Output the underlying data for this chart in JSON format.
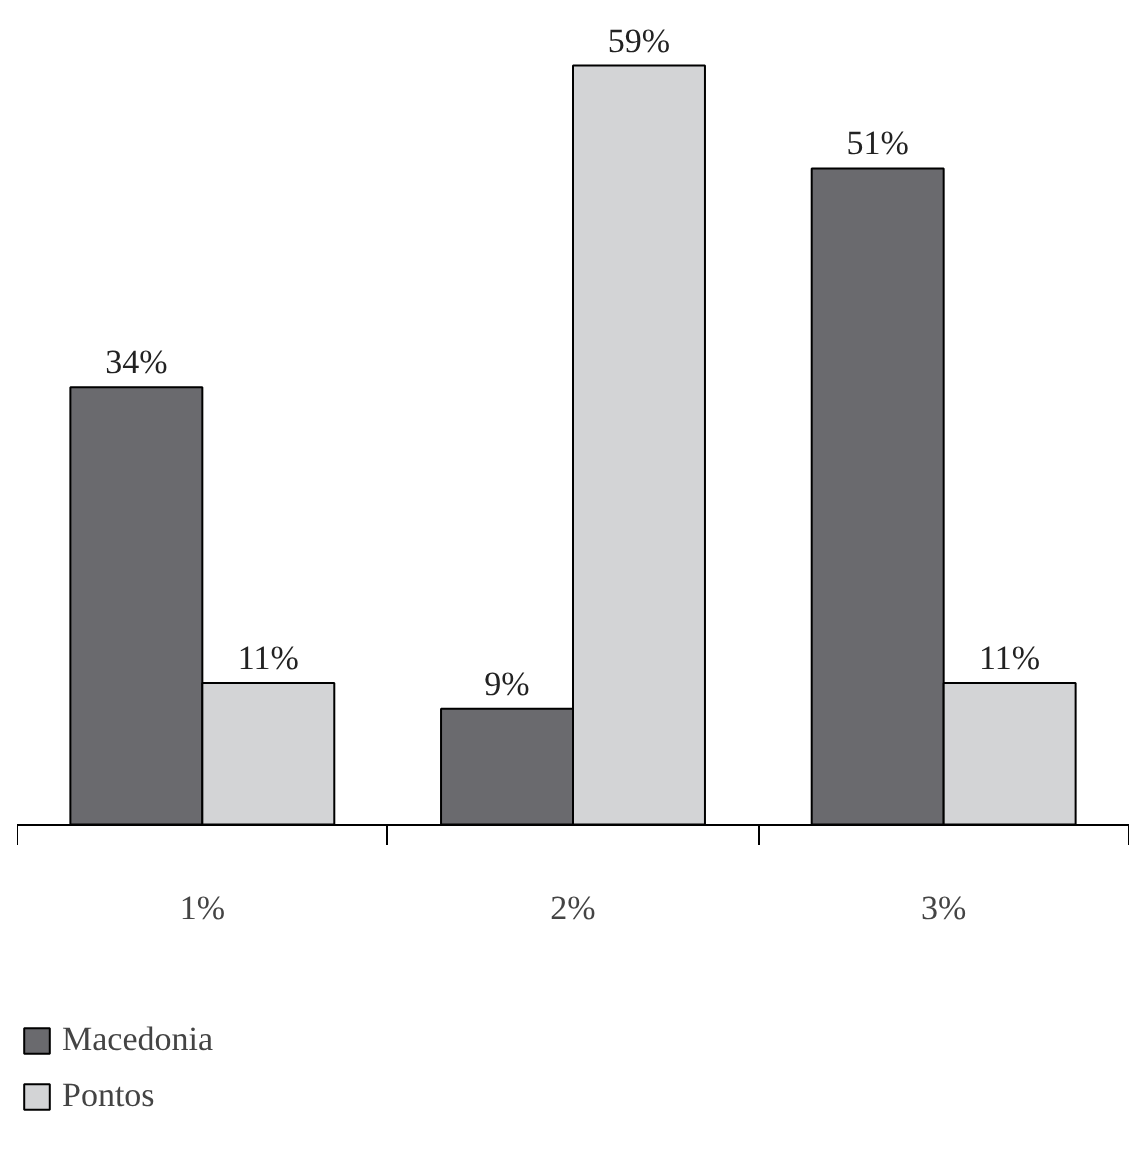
{
  "chart_data": {
    "type": "bar",
    "categories": [
      "1%",
      "2%",
      "3%"
    ],
    "series": [
      {
        "name": "Macedonia",
        "color": "#6a6a6e",
        "values": [
          34,
          9,
          51
        ],
        "value_labels": [
          "34%",
          "9%",
          "51%"
        ]
      },
      {
        "name": "Pontos",
        "color": "#d3d4d6",
        "values": [
          11,
          59,
          11
        ],
        "value_labels": [
          "11%",
          "59%",
          "11%"
        ]
      }
    ],
    "legend": "bottom left"
  }
}
